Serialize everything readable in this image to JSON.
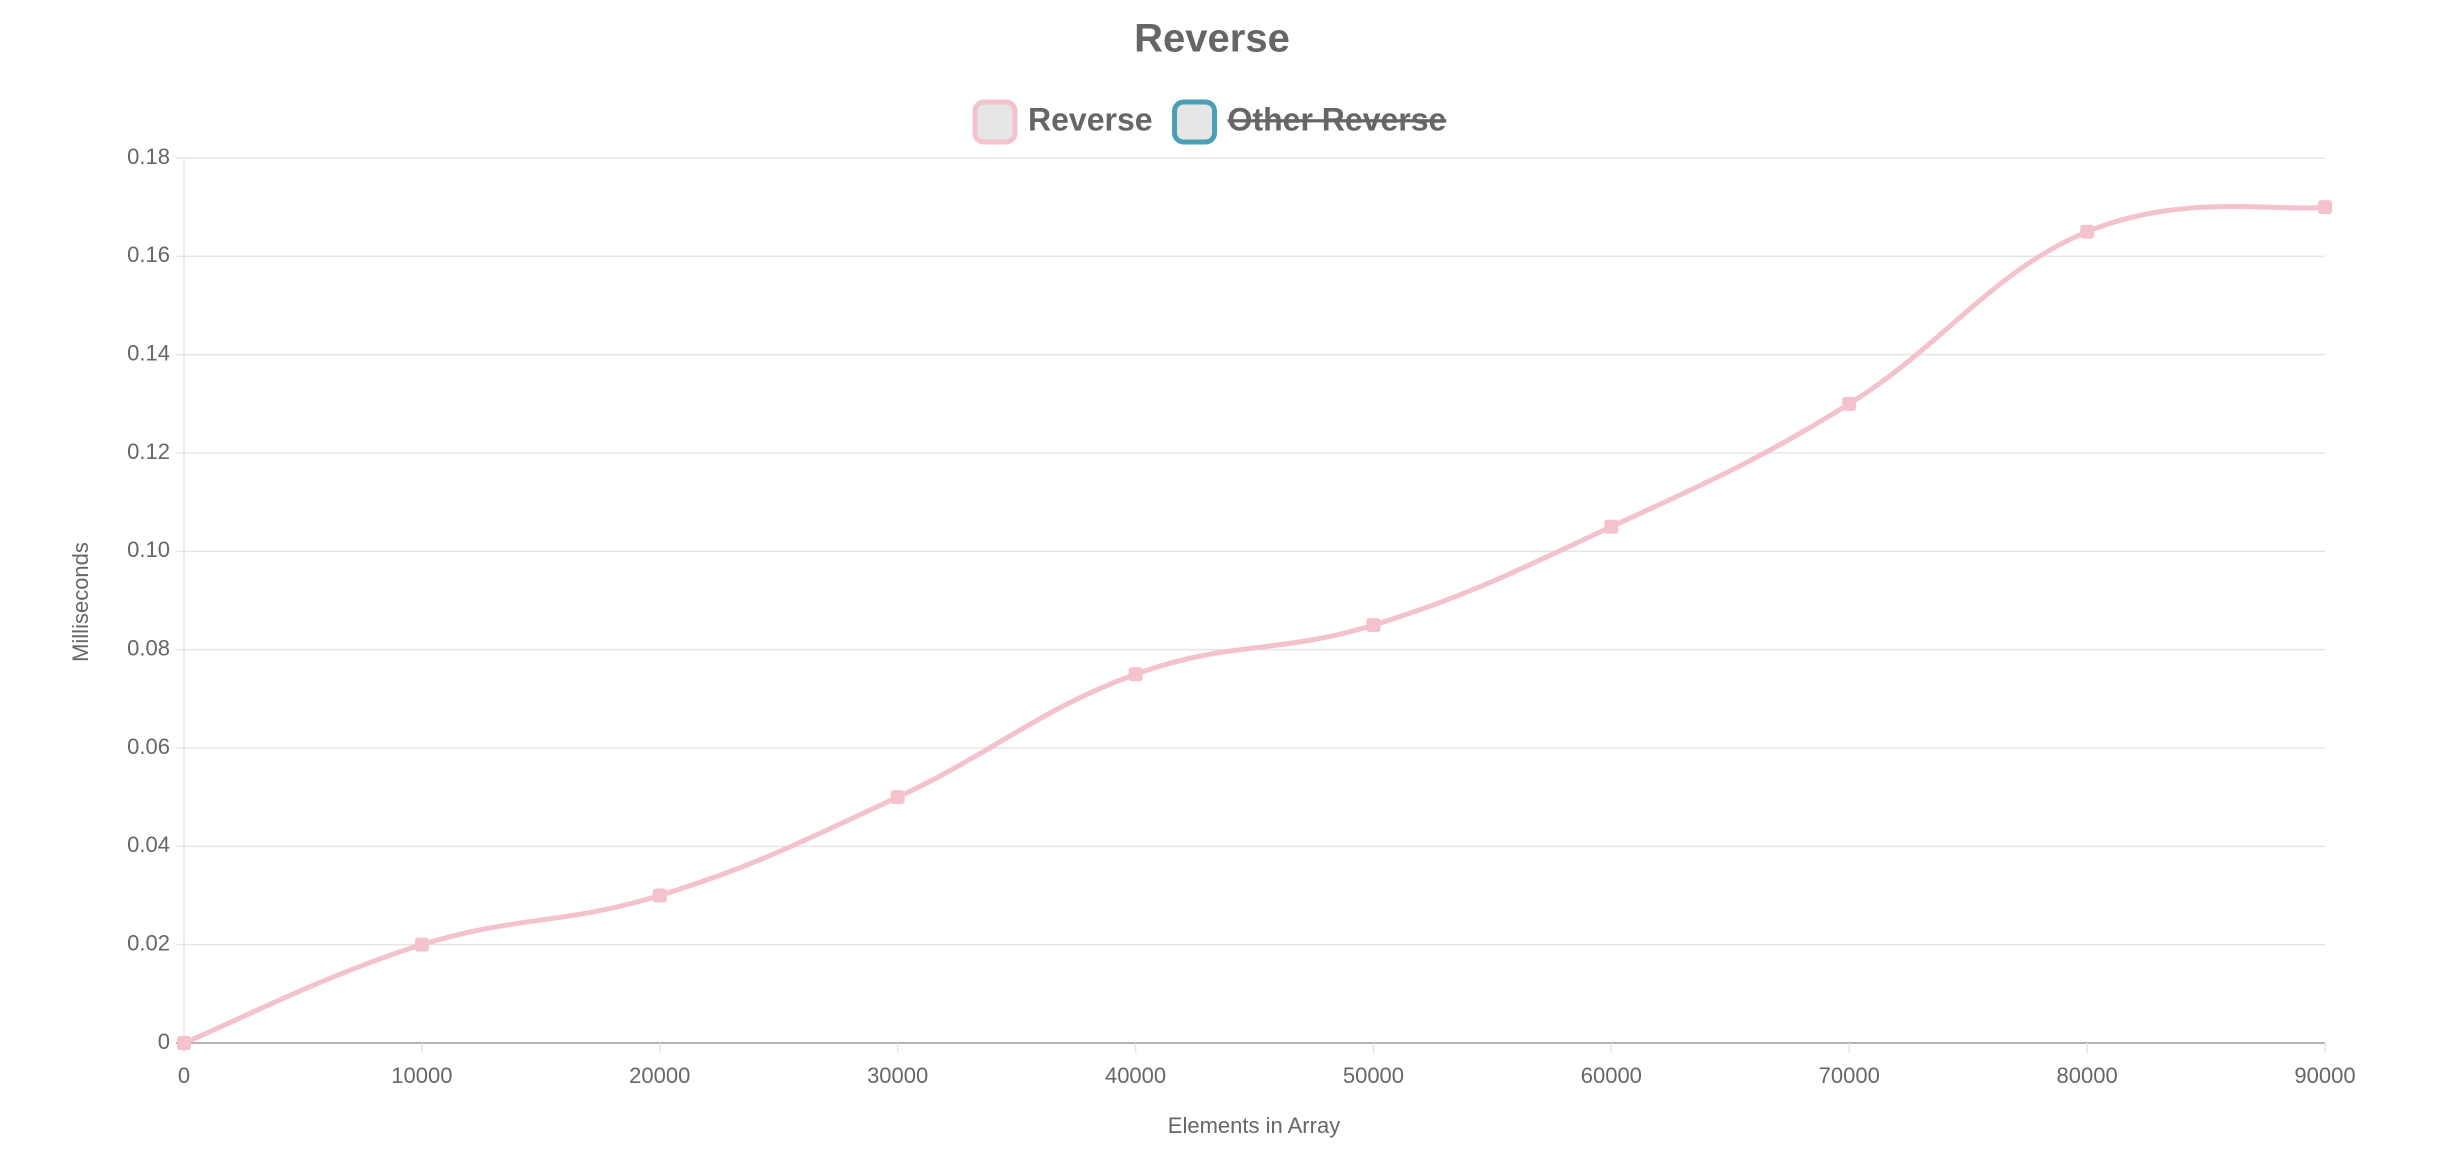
{
  "chart_data": {
    "type": "line",
    "title": "Reverse",
    "x": [
      0,
      10000,
      20000,
      30000,
      40000,
      50000,
      60000,
      70000,
      80000,
      90000
    ],
    "series": [
      {
        "name": "Reverse",
        "color": "#f4c2cc",
        "values": [
          0,
          0.02,
          0.03,
          0.05,
          0.075,
          0.085,
          0.105,
          0.13,
          0.165,
          0.17
        ]
      },
      {
        "name": "Other Reverse",
        "color": "#4a9fb5",
        "hidden": true
      }
    ],
    "xlabel": "Elements in Array",
    "ylabel": "Milliseconds",
    "xlim": [
      0,
      90000
    ],
    "xticks": [
      0,
      10000,
      20000,
      30000,
      40000,
      50000,
      60000,
      70000,
      80000,
      90000
    ],
    "ylim": [
      0,
      0.18
    ],
    "yticks": [
      0,
      0.02,
      0.04,
      0.06,
      0.08,
      {
        "value": 0.1,
        "label": "0.10"
      },
      0.12,
      0.14,
      0.16,
      0.18
    ],
    "grid": true,
    "legend": "top"
  }
}
